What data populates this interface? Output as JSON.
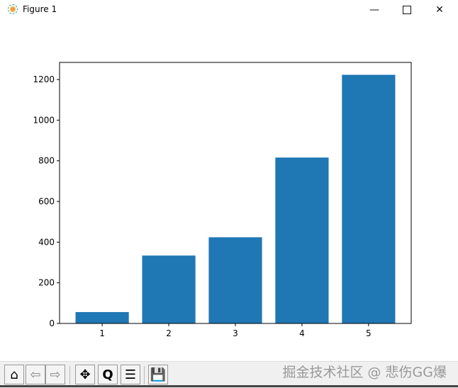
{
  "window": {
    "title": "Figure 1",
    "minimize_icon": "minimize-icon",
    "maximize_icon": "maximize-icon",
    "close_icon": "close-icon"
  },
  "toolbar": {
    "buttons": [
      "home-icon",
      "back-arrow-icon",
      "forward-arrow-icon",
      "pan-move-icon",
      "zoom-magnifier-icon",
      "configure-subplots-icon",
      "save-floppy-icon"
    ],
    "watermark": "掘金技术社区 @ 悲伤GG爆"
  },
  "chart_data": {
    "type": "bar",
    "categories": [
      "1",
      "2",
      "3",
      "4",
      "5"
    ],
    "x": [
      1,
      2,
      3,
      4,
      5
    ],
    "values": [
      56,
      334,
      424,
      816,
      1223
    ],
    "color": "#1f77b4",
    "title": "",
    "xlabel": "",
    "ylabel": "",
    "xlim": [
      0.36,
      5.64
    ],
    "ylim": [
      0,
      1284
    ],
    "yticks": [
      0,
      200,
      400,
      600,
      800,
      1000,
      1200
    ],
    "xticks": [
      1,
      2,
      3,
      4,
      5
    ],
    "grid": false
  }
}
